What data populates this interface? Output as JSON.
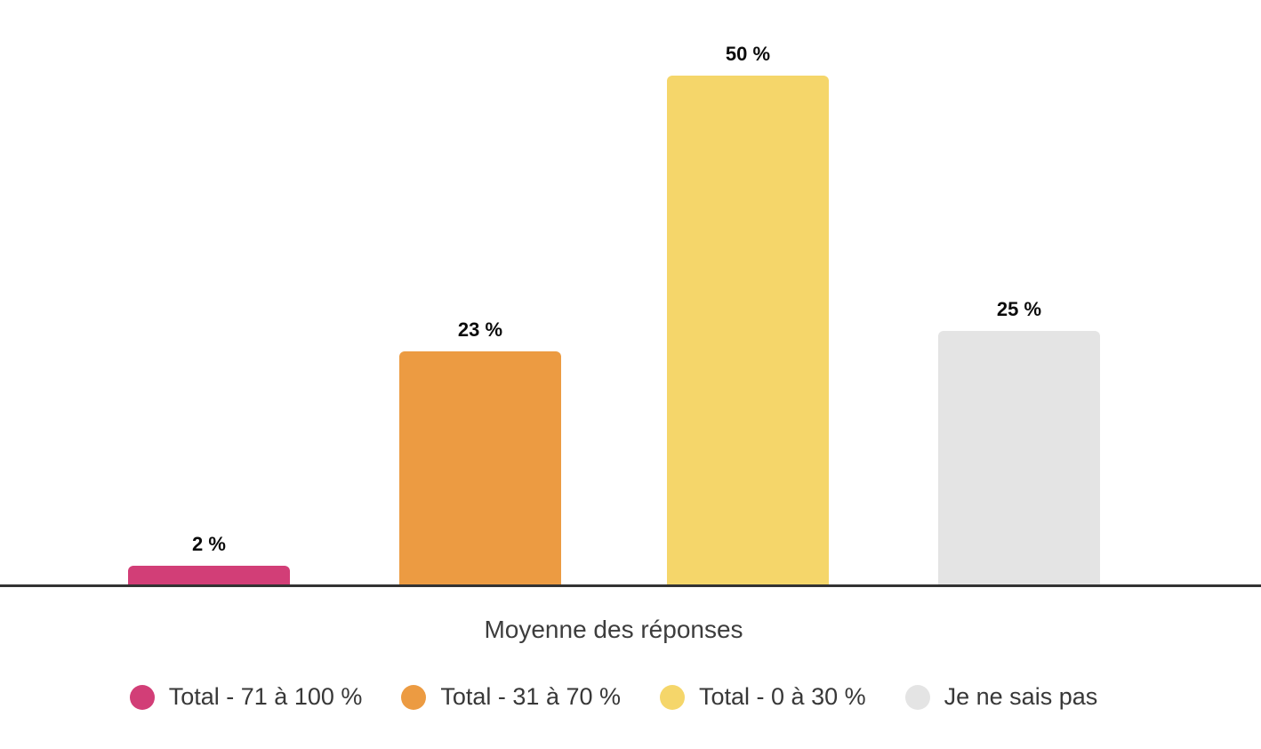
{
  "chart_data": {
    "type": "bar",
    "categories": [
      "Total - 71 à 100 %",
      "Total - 31 à 70 %",
      "Total - 0 à 30 %",
      "Je ne sais pas"
    ],
    "values": [
      2,
      23,
      50,
      25
    ],
    "value_labels": [
      "2 %",
      "23 %",
      "50 %",
      "25 %"
    ],
    "colors": [
      "#D23E77",
      "#EC9B42",
      "#F5D66A",
      "#E4E4E4"
    ],
    "title": "",
    "xlabel": "Moyenne des réponses",
    "ylabel": "",
    "ylim": [
      0,
      50
    ],
    "grid": false,
    "legend_position": "bottom",
    "axis_line_color": "#333333",
    "value_label_color": "#0b0b0b",
    "xlabel_color": "#3d3d3d",
    "legend_text_color": "#383838"
  }
}
